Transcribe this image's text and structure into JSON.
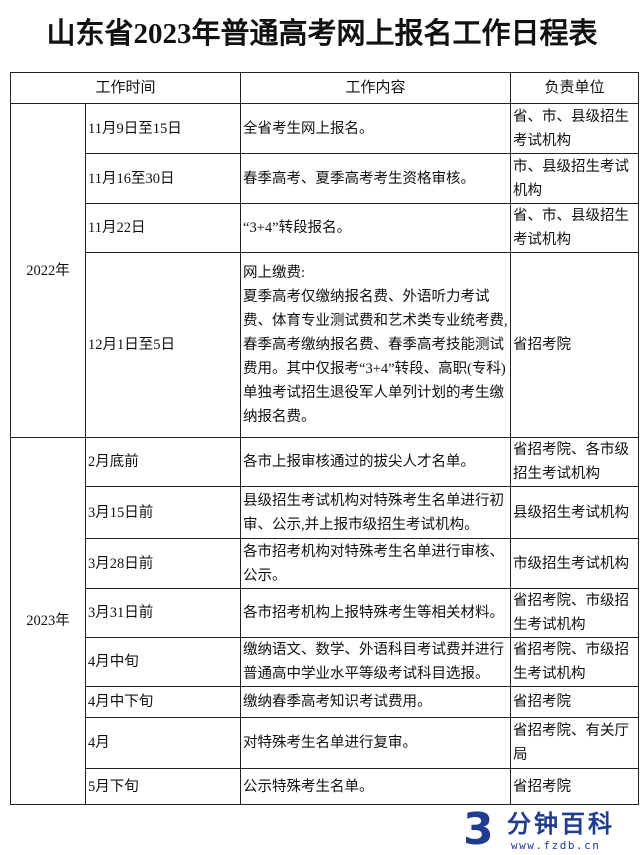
{
  "title": "山东省2023年普通高考网上报名工作日程表",
  "table": {
    "headers": [
      "工作时间",
      "工作内容",
      "负责单位"
    ],
    "groups": [
      {
        "year": "2022年",
        "rows": [
          {
            "time": "11月9日至15日",
            "content": "全省考生网上报名。",
            "unit": "省、市、县级招生考试机构"
          },
          {
            "time": "11月16至30日",
            "content": "春季高考、夏季高考考生资格审核。",
            "unit": "市、县级招生考试机构"
          },
          {
            "time": "11月22日",
            "content": "“3+4”转段报名。",
            "unit": "省、市、县级招生考试机构"
          },
          {
            "time": "12月1日至5日",
            "content": "网上缴费:\n夏季高考仅缴纳报名费、外语听力考试费、体育专业测试费和艺术类专业统考费,\n春季高考缴纳报名费、春季高考技能测试费用。其中仅报考“3+4”转段、高职(专科)单独考试招生退役军人单列计划的考生缴纳报名费。",
            "unit": "省招考院"
          }
        ]
      },
      {
        "year": "2023年",
        "rows": [
          {
            "time": "2月底前",
            "content": "各市上报审核通过的拔尖人才名单。",
            "unit": "省招考院、各市级招生考试机构"
          },
          {
            "time": "3月15日前",
            "content": "县级招生考试机构对特殊考生名单进行初审、公示,并上报市级招生考试机构。",
            "unit": "县级招生考试机构"
          },
          {
            "time": "3月28日前",
            "content": "各市招考机构对特殊考生名单进行审核、公示。",
            "unit": "市级招生考试机构"
          },
          {
            "time": "3月31日前",
            "content": "各市招考机构上报特殊考生等相关材料。",
            "unit": "省招考院、市级招生考试机构"
          },
          {
            "time": "4月中旬",
            "content": "缴纳语文、数学、外语科目考试费并进行普通高中学业水平等级考试科目选报。",
            "unit": "省招考院、市级招生考试机构"
          },
          {
            "time": "4月中下旬",
            "content": "缴纳春季高考知识考试费用。",
            "unit": "省招考院"
          },
          {
            "time": "4月",
            "content": "对特殊考生名单进行复审。",
            "unit": "省招考院、有关厅局"
          },
          {
            "time": "5月下旬",
            "content": "公示特殊考生名单。",
            "unit": "省招考院"
          }
        ]
      }
    ]
  },
  "watermark": {
    "name": "分钟百科",
    "url": "www.fzdb.cn",
    "color": "#1f3c8f"
  }
}
